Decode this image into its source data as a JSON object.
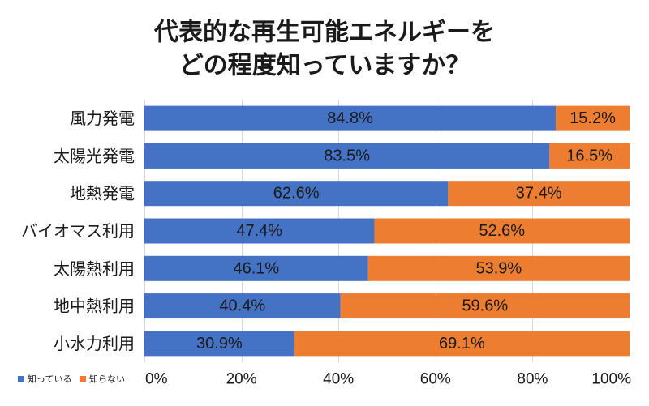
{
  "chart_data": {
    "type": "bar",
    "horizontal": true,
    "stacked_percent": true,
    "title": [
      "代表的な再生可能エネルギーを",
      "どの程度知っていますか？"
    ],
    "xlabel": "",
    "ylabel": "",
    "categories": [
      "風力発電",
      "太陽光発電",
      "地熱発電",
      "バイオマス利用",
      "太陽熱利用",
      "地中熱利用",
      "小水力利用"
    ],
    "series": [
      {
        "name": "知っている",
        "color": "#4472C4",
        "values": [
          84.8,
          83.5,
          62.6,
          47.4,
          46.1,
          40.4,
          30.9
        ],
        "data_labels": [
          "84.8%",
          "83.5%",
          "62.6%",
          "47.4%",
          "46.1%",
          "40.4%",
          "30.9%"
        ]
      },
      {
        "name": "知らない",
        "color": "#ED7D31",
        "values": [
          15.2,
          16.5,
          37.4,
          52.6,
          53.9,
          59.6,
          69.1
        ],
        "data_labels": [
          "15.2%",
          "16.5%",
          "37.4%",
          "52.6%",
          "53.9%",
          "59.6%",
          "69.1%"
        ]
      }
    ],
    "xlim": [
      0,
      100
    ],
    "xticks": [
      0,
      20,
      40,
      60,
      80,
      100
    ],
    "xtick_labels": [
      "0%",
      "20%",
      "40%",
      "60%",
      "80%",
      "100%"
    ],
    "grid": true,
    "legend_position": "bottom-left"
  }
}
